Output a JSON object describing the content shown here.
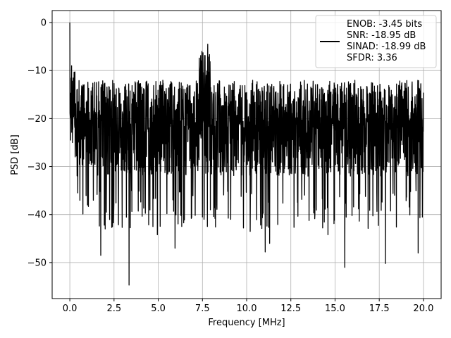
{
  "chart_data": {
    "type": "line",
    "xlabel": "Frequency [MHz]",
    "ylabel": "PSD [dB]",
    "xlim": [
      -1.0,
      21.0
    ],
    "ylim": [
      -57.5,
      2.5
    ],
    "xticks": [
      0.0,
      2.5,
      5.0,
      7.5,
      10.0,
      12.5,
      15.0,
      17.5,
      20.0
    ],
    "xtick_labels": [
      "0.0",
      "2.5",
      "5.0",
      "7.5",
      "10.0",
      "12.5",
      "15.0",
      "17.5",
      "20.0"
    ],
    "yticks": [
      0,
      -10,
      -20,
      -30,
      -40,
      -50
    ],
    "ytick_labels": [
      "0",
      "−10",
      "−20",
      "−30",
      "−40",
      "−50"
    ],
    "grid": true,
    "legend_position": "upper-right",
    "series": [
      {
        "color": "#000000",
        "description_points": [
          [
            0.0,
            0.0
          ],
          [
            0.05,
            -24.5
          ],
          [
            0.1,
            -9.0
          ],
          [
            0.15,
            -25.0
          ],
          [
            0.2,
            -13.5
          ],
          [
            0.3,
            -28.0
          ],
          [
            0.4,
            -14.0
          ],
          [
            0.45,
            -35.5
          ],
          [
            1.0,
            -38.0
          ],
          [
            1.75,
            -48.5
          ],
          [
            2.0,
            -43.0
          ],
          [
            3.35,
            -54.7
          ],
          [
            4.7,
            -42.5
          ],
          [
            4.95,
            -44.2
          ],
          [
            5.95,
            -47.0
          ],
          [
            7.8,
            -4.5
          ],
          [
            7.5,
            -40.5
          ],
          [
            9.1,
            -41.0
          ],
          [
            10.2,
            -43.5
          ],
          [
            11.05,
            -47.8
          ],
          [
            11.3,
            -46.0
          ],
          [
            14.6,
            -44.2
          ],
          [
            15.55,
            -51.0
          ],
          [
            17.85,
            -50.2
          ],
          [
            19.7,
            -48.0
          ],
          [
            20.0,
            -14.6
          ]
        ]
      }
    ],
    "legend": {
      "lines": [
        "ENOB: -3.45 bits",
        "SNR: -18.95 dB",
        "SINAD: -18.99 dB",
        "SFDR: 3.36"
      ]
    }
  }
}
